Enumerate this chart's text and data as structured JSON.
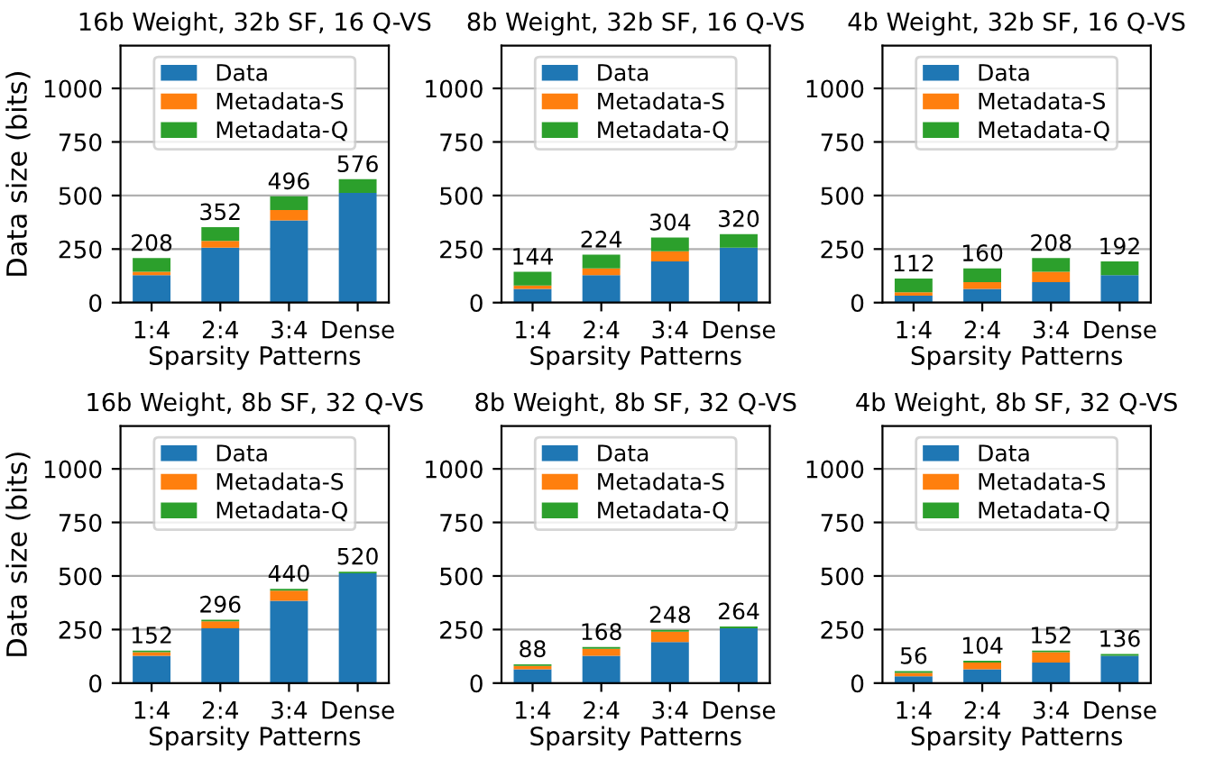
{
  "chart_data": [
    {
      "type": "bar",
      "stacked": true,
      "title": "16b Weight, 32b SF, 16 Q-VS",
      "xlabel": "Sparsity Patterns",
      "ylabel": "Data size (bits)",
      "categories": [
        "1:4",
        "2:4",
        "3:4",
        "Dense"
      ],
      "ylim": [
        0,
        1200
      ],
      "yticks": [
        0,
        250,
        500,
        750,
        1000
      ],
      "grid": "y",
      "legend": "top",
      "totals": [
        "208",
        "352",
        "496",
        "576"
      ],
      "series": [
        {
          "name": "Data",
          "color": "#1f77b4",
          "values": [
            128,
            256,
            384,
            512
          ]
        },
        {
          "name": "Metadata-S",
          "color": "#ff7f0e",
          "values": [
            16,
            32,
            48,
            0
          ]
        },
        {
          "name": "Metadata-Q",
          "color": "#2ca02c",
          "values": [
            64,
            64,
            64,
            64
          ]
        }
      ]
    },
    {
      "type": "bar",
      "stacked": true,
      "title": "8b Weight, 32b SF, 16 Q-VS",
      "xlabel": "Sparsity Patterns",
      "categories": [
        "1:4",
        "2:4",
        "3:4",
        "Dense"
      ],
      "ylim": [
        0,
        1200
      ],
      "yticks": [
        0,
        250,
        500,
        750,
        1000
      ],
      "grid": "y",
      "legend": "top",
      "totals": [
        "144",
        "224",
        "304",
        "320"
      ],
      "series": [
        {
          "name": "Data",
          "color": "#1f77b4",
          "values": [
            64,
            128,
            192,
            256
          ]
        },
        {
          "name": "Metadata-S",
          "color": "#ff7f0e",
          "values": [
            16,
            32,
            48,
            0
          ]
        },
        {
          "name": "Metadata-Q",
          "color": "#2ca02c",
          "values": [
            64,
            64,
            64,
            64
          ]
        }
      ]
    },
    {
      "type": "bar",
      "stacked": true,
      "title": "4b Weight, 32b SF, 16 Q-VS",
      "xlabel": "Sparsity Patterns",
      "categories": [
        "1:4",
        "2:4",
        "3:4",
        "Dense"
      ],
      "ylim": [
        0,
        1200
      ],
      "yticks": [
        0,
        250,
        500,
        750,
        1000
      ],
      "grid": "y",
      "legend": "top",
      "totals": [
        "112",
        "160",
        "208",
        "192"
      ],
      "series": [
        {
          "name": "Data",
          "color": "#1f77b4",
          "values": [
            32,
            64,
            96,
            128
          ]
        },
        {
          "name": "Metadata-S",
          "color": "#ff7f0e",
          "values": [
            16,
            32,
            48,
            0
          ]
        },
        {
          "name": "Metadata-Q",
          "color": "#2ca02c",
          "values": [
            64,
            64,
            64,
            64
          ]
        }
      ]
    },
    {
      "type": "bar",
      "stacked": true,
      "title": "16b Weight, 8b SF, 32 Q-VS",
      "xlabel": "Sparsity Patterns",
      "ylabel": "Data size (bits)",
      "categories": [
        "1:4",
        "2:4",
        "3:4",
        "Dense"
      ],
      "ylim": [
        0,
        1200
      ],
      "yticks": [
        0,
        250,
        500,
        750,
        1000
      ],
      "grid": "y",
      "legend": "top",
      "totals": [
        "152",
        "296",
        "440",
        "520"
      ],
      "series": [
        {
          "name": "Data",
          "color": "#1f77b4",
          "values": [
            128,
            256,
            384,
            512
          ]
        },
        {
          "name": "Metadata-S",
          "color": "#ff7f0e",
          "values": [
            16,
            32,
            48,
            0
          ]
        },
        {
          "name": "Metadata-Q",
          "color": "#2ca02c",
          "values": [
            8,
            8,
            8,
            8
          ]
        }
      ]
    },
    {
      "type": "bar",
      "stacked": true,
      "title": "8b Weight, 8b SF, 32 Q-VS",
      "xlabel": "Sparsity Patterns",
      "categories": [
        "1:4",
        "2:4",
        "3:4",
        "Dense"
      ],
      "ylim": [
        0,
        1200
      ],
      "yticks": [
        0,
        250,
        500,
        750,
        1000
      ],
      "grid": "y",
      "legend": "top",
      "totals": [
        "88",
        "168",
        "248",
        "264"
      ],
      "series": [
        {
          "name": "Data",
          "color": "#1f77b4",
          "values": [
            64,
            128,
            192,
            256
          ]
        },
        {
          "name": "Metadata-S",
          "color": "#ff7f0e",
          "values": [
            16,
            32,
            48,
            0
          ]
        },
        {
          "name": "Metadata-Q",
          "color": "#2ca02c",
          "values": [
            8,
            8,
            8,
            8
          ]
        }
      ]
    },
    {
      "type": "bar",
      "stacked": true,
      "title": "4b Weight, 8b SF, 32 Q-VS",
      "xlabel": "Sparsity Patterns",
      "categories": [
        "1:4",
        "2:4",
        "3:4",
        "Dense"
      ],
      "ylim": [
        0,
        1200
      ],
      "yticks": [
        0,
        250,
        500,
        750,
        1000
      ],
      "grid": "y",
      "legend": "top",
      "totals": [
        "56",
        "104",
        "152",
        "136"
      ],
      "series": [
        {
          "name": "Data",
          "color": "#1f77b4",
          "values": [
            32,
            64,
            96,
            128
          ]
        },
        {
          "name": "Metadata-S",
          "color": "#ff7f0e",
          "values": [
            16,
            32,
            48,
            0
          ]
        },
        {
          "name": "Metadata-Q",
          "color": "#2ca02c",
          "values": [
            8,
            8,
            8,
            8
          ]
        }
      ]
    }
  ]
}
